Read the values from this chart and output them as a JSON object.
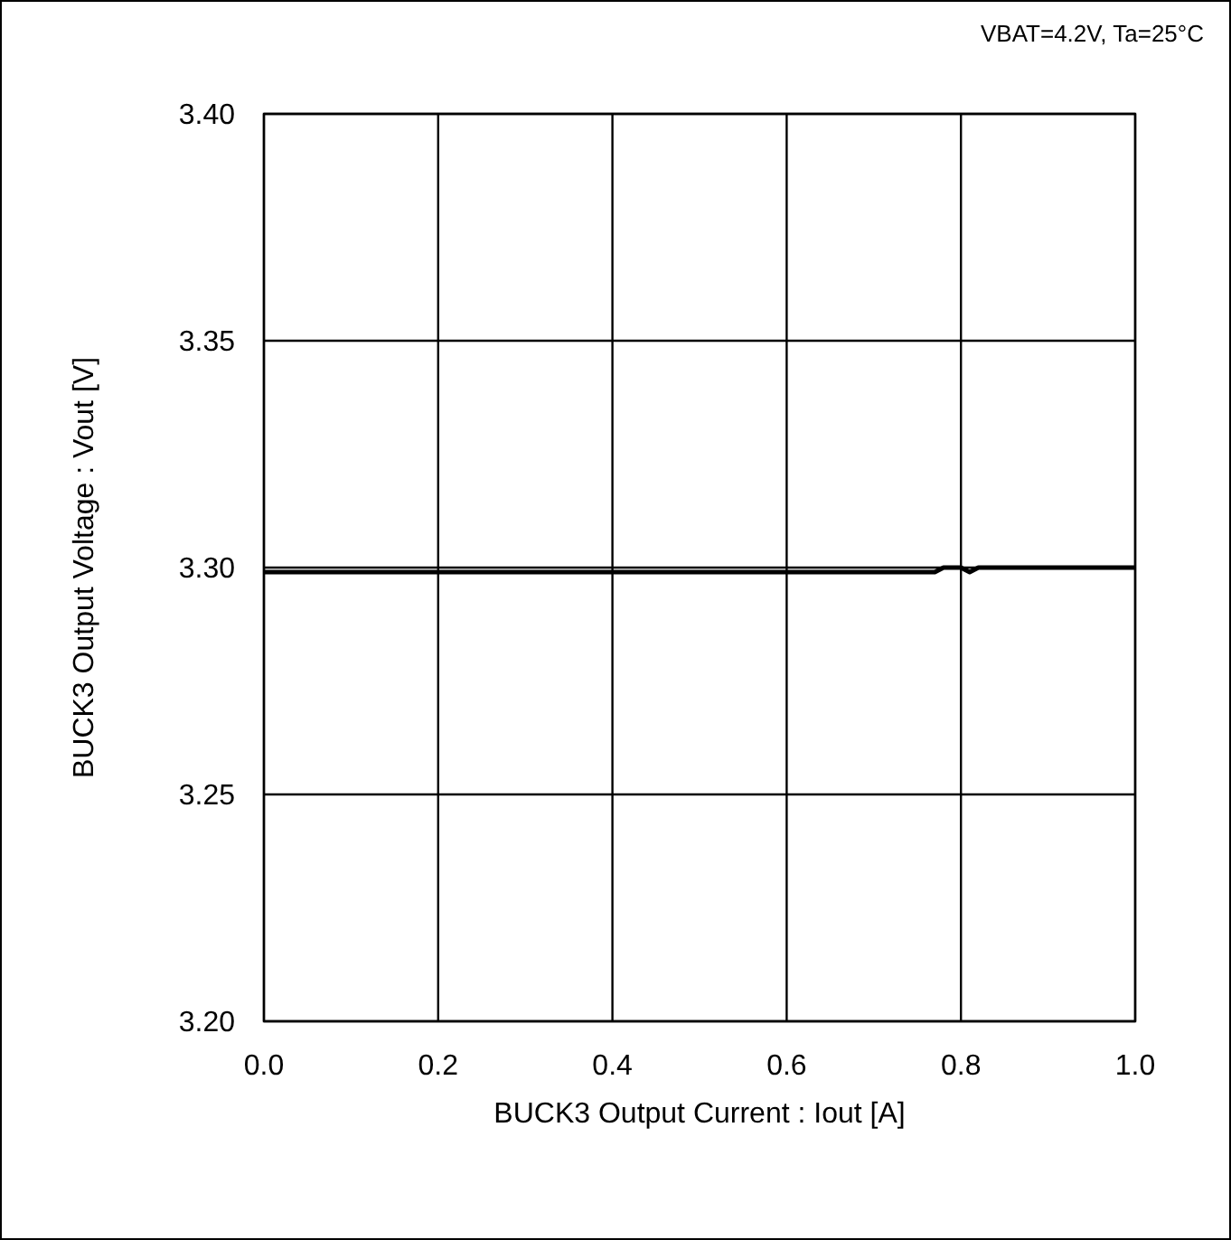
{
  "chart_data": {
    "type": "line",
    "xlabel": "BUCK3 Output Current : Iout [A]",
    "ylabel": "BUCK3 Output Voltage : Vout [V]",
    "annotations": [
      "VBAT=4.2V, Ta=25°C"
    ],
    "x": [
      0,
      0.2,
      0.4,
      0.6,
      0.77,
      0.78,
      0.8,
      0.81,
      0.82,
      1.0
    ],
    "series": [
      {
        "color": "#000000",
        "values": [
          3.299,
          3.299,
          3.299,
          3.299,
          3.299,
          3.3,
          3.3,
          3.299,
          3.3,
          3.3
        ]
      }
    ],
    "xlim": [
      0,
      1
    ],
    "xticks": [
      {
        "value": 0,
        "label": "0.0"
      },
      {
        "value": 0.2,
        "label": "0.2"
      },
      {
        "value": 0.4,
        "label": "0.4"
      },
      {
        "value": 0.6,
        "label": "0.6"
      },
      {
        "value": 0.8,
        "label": "0.8"
      },
      {
        "value": 1,
        "label": "1.0"
      }
    ],
    "ylim": [
      3.2,
      3.4
    ],
    "yticks": [
      {
        "value": 3.2,
        "label": "3.20"
      },
      {
        "value": 3.25,
        "label": "3.25"
      },
      {
        "value": 3.3,
        "label": "3.30"
      },
      {
        "value": 3.35,
        "label": "3.35"
      },
      {
        "value": 3.4,
        "label": "3.40"
      }
    ],
    "grid": true,
    "marker": "none",
    "line_style": "solid"
  }
}
